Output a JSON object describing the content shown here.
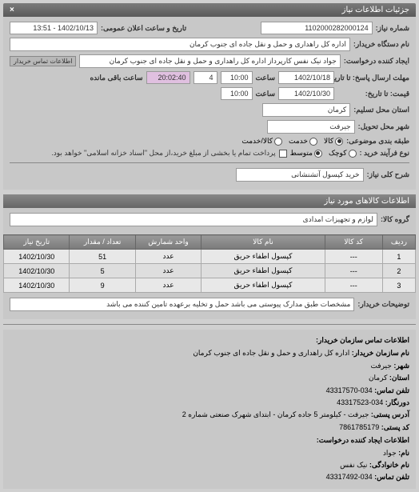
{
  "header": {
    "title": "جزئیات اطلاعات نیاز"
  },
  "form": {
    "request_number_label": "شماره نیاز:",
    "request_number": "1102000282000124",
    "announce_label": "تاریخ و ساعت اعلان عمومی:",
    "announce_value": "1402/10/13 - 13:51",
    "org_label": "نام دستگاه خریدار:",
    "org_value": "اداره کل راهداری و حمل و نقل جاده ای جنوب کرمان",
    "creator_label": "ایجاد کننده درخواست:",
    "creator_value": "جواد  نیک نفس کارپرداز اداره کل راهداری و حمل و نقل جاده ای جنوب کرمان",
    "contact_link": "اطلاعات تماس خریدار",
    "deadline_label": "مهلت ارسال پاسخ: تا تاریخ:",
    "deadline_date": "1402/10/18",
    "time_label": "ساعت",
    "deadline_time": "10:00",
    "days_field": "4",
    "remaining_label": "ساعت باقی مانده",
    "remaining_time": "20:02:40",
    "price_until_label": "قیمت: تا تاریخ:",
    "price_until_date": "1402/10/30",
    "price_until_time": "10:00",
    "province_label": "استان محل تسلیم:",
    "province_value": "کرمان",
    "city_label": "شهر محل تحویل:",
    "city_value": "جیرفت",
    "category_label": "طبقه بندی موضوعی:",
    "cat_goods": "کالا",
    "cat_service": "خدمت",
    "cat_both": "کالا/خدمت",
    "process_label": "نوع فرآیند خرید :",
    "proc_small": "کوچک",
    "proc_medium": "متوسط",
    "proc_note": "پرداخت تمام یا بخشی از مبلغ خرید،از محل \"اسناد خزانه اسلامی\" خواهد بود.",
    "need_title_label": "شرح کلی نیاز:",
    "need_title_value": "خرید کپسول آتشنشانی"
  },
  "items_section": {
    "title": "اطلاعات کالاهای مورد نیاز",
    "group_label": "گروه کالا:",
    "group_value": "لوازم و تجهیزات امدادی"
  },
  "table": {
    "columns": [
      "ردیف",
      "کد کالا",
      "نام کالا",
      "واحد شمارش",
      "تعداد / مقدار",
      "تاریخ نیاز"
    ],
    "rows": [
      [
        "1",
        "---",
        "کپسول اطفاء حریق",
        "عدد",
        "51",
        "1402/10/30"
      ],
      [
        "2",
        "---",
        "کپسول اطفاء حریق",
        "عدد",
        "5",
        "1402/10/30"
      ],
      [
        "3",
        "---",
        "کپسول اطفاء حریق",
        "عدد",
        "9",
        "1402/10/30"
      ]
    ],
    "col_widths": [
      "8%",
      "14%",
      "30%",
      "16%",
      "16%",
      "16%"
    ]
  },
  "buyer_notes": {
    "label": "توضیحات خریدار:",
    "value": "مشخصات طبق مدارک پیوستی می باشد حمل و تخلیه برعهده تامین کننده می باشد"
  },
  "contact_section": {
    "title": "اطلاعات تماس سازمان خریدار:",
    "org_name_label": "نام سازمان خریدار:",
    "org_name": "اداره کل راهداری و حمل و نقل جاده ای جنوب کرمان",
    "city_label": "شهر:",
    "city": "جیرفت",
    "province_label": "استان:",
    "province": "کرمان",
    "phone_label": "تلفن تماس:",
    "phone": "034-43317570",
    "fax_label": "دورنگار:",
    "fax": "034-43317523",
    "address_label": "آدرس پستی:",
    "address": "جیرفت - کیلومتر 5 جاده کرمان - ابتدای شهرک صنعتی شماره 2",
    "postal_label": "کد پستی:",
    "postal": "7861785179",
    "creator_title": "اطلاعات ایجاد کننده درخواست:",
    "name_label": "نام:",
    "name": "جواد",
    "family_label": "نام خانوادگی:",
    "family": "نیک نفس",
    "tel_label": "تلفن تماس:",
    "tel": "034-43317492"
  }
}
